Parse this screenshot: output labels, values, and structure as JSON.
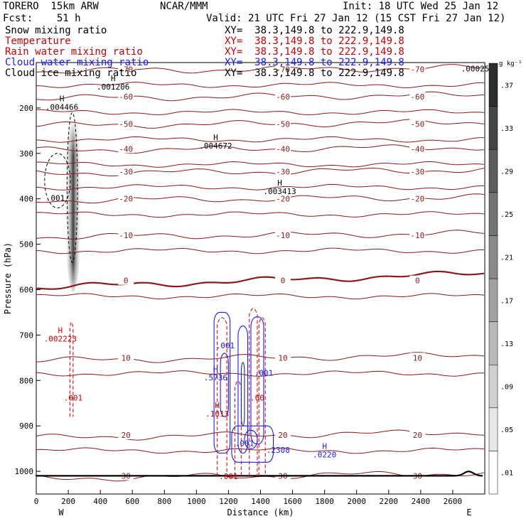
{
  "header": {
    "model": "TORERO  15km ARW",
    "org": "NCAR/MMM",
    "init": "Init: 18 UTC Wed 25 Jan 12",
    "fcst": "Fcst:    51 h",
    "valid": "Valid: 21 UTC Fri 27 Jan 12 (15 CST Fri 27 Jan 12)"
  },
  "legend": [
    {
      "label": "Snow mixing ratio",
      "xs": "XY=  38.3,149.8 to 222.9,149.8",
      "color": "#000000"
    },
    {
      "label": "Temperature",
      "xs": "XY=  38.3,149.8 to 222.9,149.8",
      "color": "#cc0000"
    },
    {
      "label": "Rain water mixing ratio",
      "xs": "XY=  38.3,149.8 to 222.9,149.8",
      "color": "#cc0000"
    },
    {
      "label": "Cloud water mixing ratio",
      "xs": "XY=  38.3,149.8 to 222.9,149.8",
      "color": "#1a1aff"
    },
    {
      "label": "Cloud ice mixing ratio",
      "xs": "XY=  38.3,149.8 to 222.9,149.8",
      "color": "#000000"
    }
  ],
  "colors": {
    "temperature": "#8b1a1a",
    "rain": "#e02020",
    "cloud_water": "#1a1aff",
    "cloud_ice": "#000000",
    "terrain": "#000000"
  },
  "chart_data": {
    "type": "cross-section contour",
    "xlabel": "Distance (km)",
    "ylabel": "Pressure (hPa)",
    "xlim": [
      0,
      2800
    ],
    "ylim": [
      1050,
      100
    ],
    "x_ticks": [
      0,
      200,
      400,
      600,
      800,
      1000,
      1200,
      1400,
      1600,
      1800,
      2000,
      2200,
      2400,
      2600
    ],
    "y_ticks": [
      200,
      300,
      400,
      500,
      600,
      700,
      800,
      900,
      1000
    ],
    "x_end_labels": [
      "W",
      "E"
    ],
    "colorbar": {
      "unit": "g kg⁻¹",
      "ticks": [
        ".01",
        ".05",
        ".09",
        ".13",
        ".17",
        ".21",
        ".25",
        ".29",
        ".33",
        ".37"
      ],
      "values": [
        0.01,
        0.05,
        0.09,
        0.13,
        0.17,
        0.21,
        0.25,
        0.29,
        0.33,
        0.37
      ]
    },
    "temperature_isotherms": [
      {
        "value": "-70",
        "p": 115
      },
      {
        "value": "-60",
        "p": 175
      },
      {
        "value": "-50",
        "p": 235
      },
      {
        "value": "-40",
        "p": 290
      },
      {
        "value": "-30",
        "p": 340
      },
      {
        "value": "-20",
        "p": 400
      },
      {
        "value": "-10",
        "p": 480
      },
      {
        "value": "0",
        "p": 580
      },
      {
        "value": "10",
        "p": 750
      },
      {
        "value": "20",
        "p": 920
      },
      {
        "value": "30",
        "p": 1010
      }
    ],
    "annotations": [
      {
        "text": "H",
        "sub": ".001206",
        "x": 480,
        "p": 150,
        "color": "#000000"
      },
      {
        "text": "H",
        "sub": ".004466",
        "x": 160,
        "p": 195,
        "color": "#000000"
      },
      {
        "text": "H",
        "sub": ".004672",
        "x": 1120,
        "p": 280,
        "color": "#000000"
      },
      {
        "text": "H",
        "sub": ".003413",
        "x": 1520,
        "p": 380,
        "color": "#000000"
      },
      {
        "text": "",
        "sub": ".001",
        "x": 120,
        "p": 395,
        "color": "#000000"
      },
      {
        "text": "H",
        "sub": ".002223",
        "x": 150,
        "p": 705,
        "color": "#cc0000"
      },
      {
        "text": "",
        "sub": ".001",
        "x": 230,
        "p": 835,
        "color": "#cc0000"
      },
      {
        "text": "",
        "sub": ".001",
        "x": 1180,
        "p": 720,
        "color": "#1a1aff"
      },
      {
        "text": "H",
        "sub": ".5736",
        "x": 1120,
        "p": 790,
        "color": "#1a1aff"
      },
      {
        "text": "",
        "sub": ".001",
        "x": 1420,
        "p": 780,
        "color": "#1a1aff"
      },
      {
        "text": "H",
        "sub": ".1013",
        "x": 1130,
        "p": 870,
        "color": "#cc0000"
      },
      {
        "text": "",
        "sub": ".00",
        "x": 1380,
        "p": 835,
        "color": "#cc0000"
      },
      {
        "text": "",
        "sub": ".001",
        "x": 1300,
        "p": 935,
        "color": "#1a1aff"
      },
      {
        "text": "",
        "sub": ".2308",
        "x": 1510,
        "p": 950,
        "color": "#1a1aff"
      },
      {
        "text": "H",
        "sub": ".0220",
        "x": 1800,
        "p": 960,
        "color": "#1a1aff"
      },
      {
        "text": "",
        "sub": ".001",
        "x": 1200,
        "p": 1008,
        "color": "#cc0000"
      },
      {
        "text": "",
        "sub": ".00025",
        "x": 2740,
        "p": 110,
        "color": "#000000"
      }
    ]
  }
}
